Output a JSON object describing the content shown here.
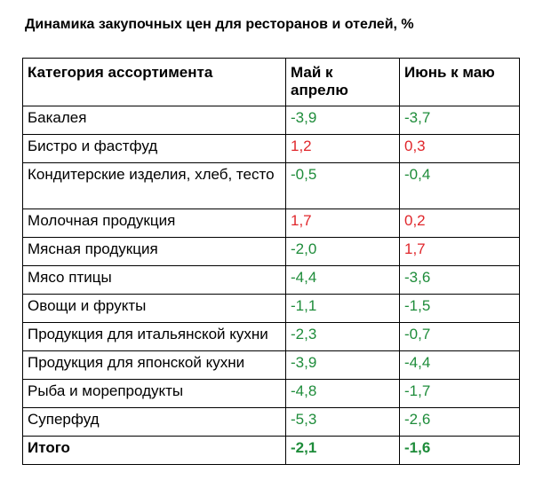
{
  "title": "Динамика закупочных цен для ресторанов и отелей, %",
  "colors": {
    "decrease": "#1e8c3a",
    "increase": "#e0262b"
  },
  "table": {
    "headers": [
      "Категория ассортимента",
      "Май к апрелю",
      "Июнь к маю"
    ],
    "rows": [
      {
        "category": "Бакалея",
        "may": "-3,9",
        "june": "-3,7"
      },
      {
        "category": "Бистро и фастфуд",
        "may": "1,2",
        "june": "0,3"
      },
      {
        "category": "Кондитерские изделия, хлеб, тесто",
        "may": "-0,5",
        "june": "-0,4"
      },
      {
        "category": "Молочная продукция",
        "may": "1,7",
        "june": "0,2"
      },
      {
        "category": "Мясная продукция",
        "may": "-2,0",
        "june": "1,7"
      },
      {
        "category": "Мясо птицы",
        "may": "-4,4",
        "june": "-3,6"
      },
      {
        "category": "Овощи и фрукты",
        "may": "-1,1",
        "june": "-1,5"
      },
      {
        "category": "Продукция для итальянской кухни",
        "may": "-2,3",
        "june": "-0,7"
      },
      {
        "category": "Продукция для японской кухни",
        "may": "-3,9",
        "june": "-4,4"
      },
      {
        "category": "Рыба и морепродукты",
        "may": "-4,8",
        "june": "-1,7"
      },
      {
        "category": "Суперфуд",
        "may": "-5,3",
        "june": "-2,6"
      }
    ],
    "total": {
      "category": "Итого",
      "may": "-2,1",
      "june": "-1,6"
    }
  }
}
